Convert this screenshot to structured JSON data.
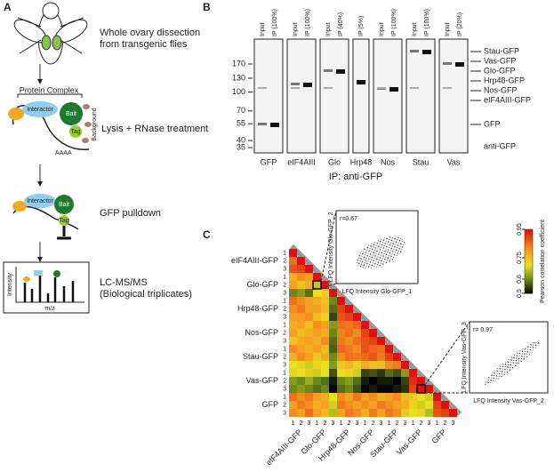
{
  "panel_a": {
    "label": "A",
    "steps": [
      "Whole ovary dissection",
      "from transgenic flies",
      "Lysis + RNase treatment",
      "GFP pulldown",
      "LC-MS/MS",
      "(Biological triplicates)"
    ],
    "diagram": {
      "protein_complex": "Protein Complex",
      "interactor": "Interactor",
      "bait": "Bait",
      "tag": "Tag",
      "polya": "AAAA",
      "background": "Background",
      "intensity": "Intensity",
      "mz": "m/z"
    }
  },
  "panel_b": {
    "label": "B",
    "mw_markers": [
      170,
      130,
      100,
      70,
      55,
      40,
      35
    ],
    "lanes": [
      {
        "bait": "GFP",
        "headers": [
          "Input",
          "IP (100%)"
        ]
      },
      {
        "bait": "eIF4AIII",
        "headers": [
          "Input",
          "IP (100%)"
        ]
      },
      {
        "bait": "Glo",
        "headers": [
          "Input",
          "IP (40%)"
        ]
      },
      {
        "bait": "Hrp48",
        "headers": [
          "IP (5%)"
        ]
      },
      {
        "bait": "Nos",
        "headers": [
          "Input",
          "IP (100%)"
        ]
      },
      {
        "bait": "Stau",
        "headers": [
          "Input",
          "IP (100%)"
        ]
      },
      {
        "bait": "Vas",
        "headers": [
          "Input",
          "IP (20%)"
        ]
      }
    ],
    "right_labels": [
      "Stau-GFP",
      "Vas-GFP",
      "Glo-GFP",
      "Hrp48-GFP",
      "Nos-GFP",
      "eIF4AIII-GFP",
      "GFP"
    ],
    "antibody": "anti-GFP",
    "xlabel": "IP: anti-GFP"
  },
  "panel_c": {
    "label": "C",
    "groups": [
      "eIF4AIII-GFP",
      "Glo-GFP",
      "Hrp48-GFP",
      "Nos-GFP",
      "Stau-GFP",
      "Vas-GFP",
      "GFP"
    ],
    "replicates": [
      "1",
      "2",
      "3"
    ],
    "values": [
      [
        0.95
      ],
      [
        0.85,
        0.95
      ],
      [
        0.88,
        0.9,
        0.95
      ],
      [
        0.78,
        0.82,
        0.8,
        0.95
      ],
      [
        0.8,
        0.75,
        0.78,
        0.67,
        0.95
      ],
      [
        0.6,
        0.62,
        0.58,
        0.7,
        0.72,
        0.95
      ],
      [
        0.85,
        0.82,
        0.8,
        0.78,
        0.75,
        0.6,
        0.95
      ],
      [
        0.82,
        0.84,
        0.8,
        0.8,
        0.76,
        0.58,
        0.9,
        0.95
      ],
      [
        0.8,
        0.8,
        0.82,
        0.75,
        0.72,
        0.55,
        0.88,
        0.9,
        0.95
      ],
      [
        0.78,
        0.8,
        0.75,
        0.82,
        0.8,
        0.62,
        0.85,
        0.84,
        0.86,
        0.95
      ],
      [
        0.8,
        0.76,
        0.78,
        0.8,
        0.78,
        0.6,
        0.83,
        0.85,
        0.82,
        0.9,
        0.95
      ],
      [
        0.75,
        0.78,
        0.8,
        0.78,
        0.82,
        0.58,
        0.84,
        0.82,
        0.85,
        0.88,
        0.9,
        0.95
      ],
      [
        0.82,
        0.8,
        0.78,
        0.8,
        0.76,
        0.57,
        0.86,
        0.84,
        0.82,
        0.88,
        0.86,
        0.85,
        0.95
      ],
      [
        0.78,
        0.82,
        0.8,
        0.74,
        0.78,
        0.6,
        0.82,
        0.85,
        0.84,
        0.86,
        0.88,
        0.84,
        0.9,
        0.95
      ],
      [
        0.7,
        0.72,
        0.68,
        0.72,
        0.7,
        0.62,
        0.74,
        0.76,
        0.72,
        0.78,
        0.75,
        0.76,
        0.82,
        0.84,
        0.95
      ],
      [
        0.72,
        0.7,
        0.74,
        0.68,
        0.7,
        0.56,
        0.7,
        0.72,
        0.68,
        0.55,
        0.56,
        0.54,
        0.58,
        0.56,
        0.62,
        0.95
      ],
      [
        0.62,
        0.6,
        0.64,
        0.6,
        0.58,
        0.52,
        0.6,
        0.62,
        0.58,
        0.52,
        0.5,
        0.52,
        0.52,
        0.5,
        0.55,
        0.92,
        0.95
      ],
      [
        0.6,
        0.62,
        0.6,
        0.58,
        0.6,
        0.5,
        0.58,
        0.6,
        0.56,
        0.5,
        0.52,
        0.5,
        0.5,
        0.52,
        0.54,
        0.9,
        0.97,
        0.95
      ],
      [
        0.85,
        0.82,
        0.84,
        0.8,
        0.78,
        0.7,
        0.82,
        0.8,
        0.84,
        0.8,
        0.82,
        0.78,
        0.8,
        0.82,
        0.76,
        0.74,
        0.7,
        0.68,
        0.95
      ],
      [
        0.8,
        0.84,
        0.82,
        0.78,
        0.8,
        0.68,
        0.84,
        0.82,
        0.8,
        0.82,
        0.8,
        0.84,
        0.82,
        0.8,
        0.78,
        0.72,
        0.68,
        0.7,
        0.9,
        0.95
      ],
      [
        0.82,
        0.8,
        0.85,
        0.8,
        0.76,
        0.66,
        0.8,
        0.84,
        0.82,
        0.78,
        0.84,
        0.8,
        0.84,
        0.82,
        0.74,
        0.7,
        0.72,
        0.66,
        0.88,
        0.9,
        0.95
      ]
    ],
    "colorbar": {
      "title": "Pearson correlation coefficient",
      "ticks": [
        0.5,
        0.6,
        0.75,
        0.95
      ],
      "colormap": [
        {
          "value": 0.5,
          "color": "#000000"
        },
        {
          "value": 0.6,
          "color": "#6b8a1a"
        },
        {
          "value": 0.7,
          "color": "#e8e020"
        },
        {
          "value": 0.8,
          "color": "#f5a020"
        },
        {
          "value": 0.95,
          "color": "#e01010"
        }
      ]
    },
    "insets": [
      {
        "r": "r=0.67",
        "xlabel": "LFQ Intensity Glo-GFP_1",
        "ylabel": "LFQ Intensity Glo-GFP_2"
      },
      {
        "r": "r= 0.97",
        "xlabel": "LFQ Intensity Vas-GFP_2",
        "ylabel": "LFQ Intensity Vas-GFP_3"
      }
    ]
  }
}
